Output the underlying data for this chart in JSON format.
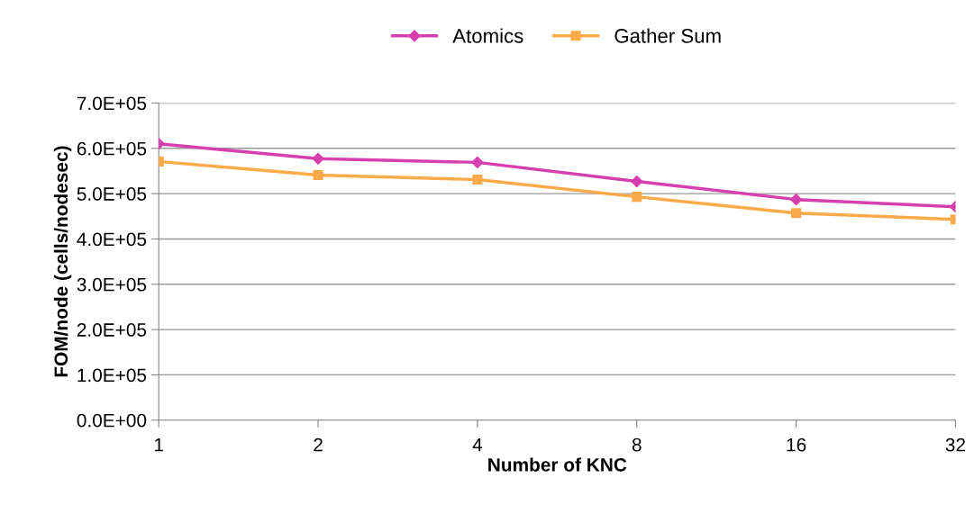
{
  "chart_data": {
    "type": "line",
    "xlabel": "Number of KNC",
    "ylabel": "FOM/node (cells/nodesec)",
    "categories": [
      "1",
      "2",
      "4",
      "8",
      "16",
      "32"
    ],
    "series": [
      {
        "name": "Atomics",
        "color": "#d63fae",
        "marker": "diamond",
        "values": [
          610000,
          577000,
          569000,
          527000,
          487000,
          471000
        ]
      },
      {
        "name": "Gather Sum",
        "color": "#fbaa4a",
        "marker": "square",
        "values": [
          571000,
          541000,
          531000,
          493000,
          457000,
          443000
        ]
      }
    ],
    "ylim": [
      0,
      700000
    ],
    "yticks": [
      {
        "value": 0,
        "label": "0.0E+00"
      },
      {
        "value": 100000,
        "label": "1.0E+05"
      },
      {
        "value": 200000,
        "label": "2.0E+05"
      },
      {
        "value": 300000,
        "label": "3.0E+05"
      },
      {
        "value": 400000,
        "label": "4.0E+05"
      },
      {
        "value": 500000,
        "label": "5.0E+05"
      },
      {
        "value": 600000,
        "label": "6.0E+05"
      },
      {
        "value": 700000,
        "label": "7.0E+05"
      }
    ],
    "grid": "y",
    "legend": "top",
    "line_style": "solid"
  }
}
